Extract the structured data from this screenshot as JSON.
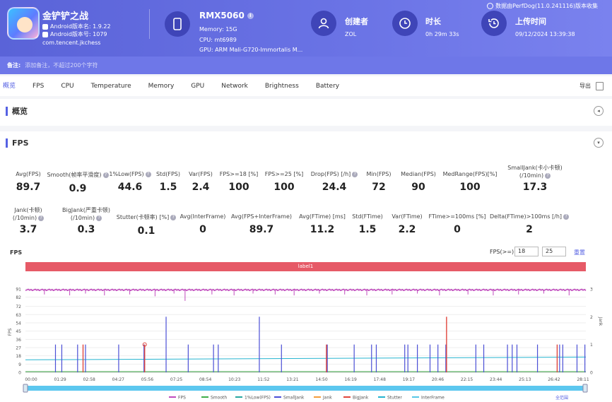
{
  "app": {
    "name": "金铲铲之战",
    "version_line": "Android版本名: 1.9.22",
    "code_line": "Android版本号: 1079",
    "package": "com.tencent.jkchess"
  },
  "device": {
    "name": "RMX5060",
    "memory": "Memory: 15G",
    "cpu": "CPU: mt6989",
    "gpu": "GPU: ARM Mali-G720-Immortalis M..."
  },
  "creator": {
    "title": "创建者",
    "value": "ZOL"
  },
  "duration": {
    "title": "时长",
    "value": "0h 29m 33s"
  },
  "upload": {
    "title": "上传时间",
    "value": "09/12/2024 13:39:38"
  },
  "perfdog_link": "数据由PerfDog(11.0.241116)版本收集",
  "note": {
    "label": "备注:",
    "placeholder": "添加备注，不超过200个字符"
  },
  "tabs": [
    "概览",
    "FPS",
    "CPU",
    "Temperature",
    "Memory",
    "GPU",
    "Network",
    "Brightness",
    "Battery"
  ],
  "export_label": "导出",
  "overview_title": "概览",
  "fps_title": "FPS",
  "stats_row1": [
    {
      "label": "Avg(FPS)",
      "value": "89.7",
      "q": false
    },
    {
      "label": "Smooth(帧率平滑度)",
      "value": "0.9",
      "q": true
    },
    {
      "label": "1%Low(FPS)",
      "value": "44.6",
      "q": true
    },
    {
      "label": "Std(FPS)",
      "value": "1.5",
      "q": false
    },
    {
      "label": "Var(FPS)",
      "value": "2.4",
      "q": false
    },
    {
      "label": "FPS>=18 [%]",
      "value": "100",
      "q": false
    },
    {
      "label": "FPS>=25 [%]",
      "value": "100",
      "q": false
    },
    {
      "label": "Drop(FPS) [/h]",
      "value": "24.4",
      "q": true
    },
    {
      "label": "Min(FPS)",
      "value": "72",
      "q": false
    },
    {
      "label": "Median(FPS)",
      "value": "90",
      "q": false
    },
    {
      "label": "MedRange(FPS)[%]",
      "value": "100",
      "q": false
    },
    {
      "label": "SmallJank(卡小卡顿)",
      "label2": "(/10min)",
      "value": "17.3",
      "q": true
    }
  ],
  "stats_row2": [
    {
      "label": "Jank(卡顿)",
      "label2": "(/10min)",
      "value": "3.7",
      "q": true
    },
    {
      "label": "BigJank(严重卡顿)",
      "label2": "(/10min)",
      "value": "0.3",
      "q": true
    },
    {
      "label": "Stutter(卡顿率) [%]",
      "value": "0.1",
      "q": true
    },
    {
      "label": "Avg(InterFrame)",
      "value": "0",
      "q": false
    },
    {
      "label": "Avg(FPS+InterFrame)",
      "value": "89.7",
      "q": false
    },
    {
      "label": "Avg(FTime) [ms]",
      "value": "11.2",
      "q": false
    },
    {
      "label": "Std(FTime)",
      "value": "1.5",
      "q": false
    },
    {
      "label": "Var(FTime)",
      "value": "2.2",
      "q": false
    },
    {
      "label": "FTime>=100ms [%]",
      "value": "0",
      "q": false
    },
    {
      "label": "Delta(FTime)>100ms [/h]",
      "value": "2",
      "q": true
    }
  ],
  "chart_controls": {
    "title": "FPS",
    "threshold_label": "FPS(>=)",
    "threshold_1": "18",
    "threshold_2": "25",
    "reset_label": "重置",
    "label_bar": "label1",
    "zoom_all": "全范围"
  },
  "chart_data": {
    "type": "line",
    "title": "FPS",
    "ylabel": "FPS",
    "y2label": "Jank",
    "ylim": [
      0,
      91
    ],
    "y2lim": [
      0,
      3
    ],
    "yticks": [
      0,
      9,
      18,
      27,
      36,
      45,
      54,
      63,
      72,
      82,
      91
    ],
    "y2ticks": [
      0,
      1,
      2,
      3
    ],
    "xticks": [
      "00:00",
      "01:29",
      "02:58",
      "04:27",
      "05:56",
      "07:25",
      "08:54",
      "10:23",
      "11:52",
      "13:21",
      "14:50",
      "16:19",
      "17:48",
      "19:17",
      "20:46",
      "22:15",
      "23:44",
      "25:13",
      "26:42",
      "28:11"
    ],
    "duration_s": 1773,
    "fps_base": 90,
    "fps_dips_s": [
      60,
      140,
      190,
      250,
      330,
      410,
      470,
      505,
      590,
      660,
      720,
      790,
      850,
      930,
      1010,
      1080,
      1160,
      1240,
      1310,
      1400,
      1480,
      1560,
      1640,
      1720
    ],
    "fps_dip_values": [
      85,
      84,
      86,
      84,
      85,
      83,
      86,
      78,
      85,
      84,
      86,
      85,
      84,
      86,
      85,
      84,
      85,
      86,
      84,
      85,
      84,
      85,
      86,
      84
    ],
    "smalljank_s": [
      95,
      115,
      165,
      190,
      295,
      375,
      445,
      515,
      595,
      610,
      740,
      810,
      955,
      1040,
      1095,
      1110,
      1200,
      1210,
      1240,
      1280,
      1305,
      1330,
      1425,
      1450,
      1525,
      1540,
      1555,
      1620,
      1690,
      1700,
      1745,
      1770
    ],
    "smalljank_vals": [
      1,
      1,
      1,
      1,
      1,
      1,
      2,
      1,
      1,
      1,
      2,
      1,
      1,
      1,
      1,
      1,
      1,
      1,
      1,
      1,
      1,
      1,
      1,
      1,
      1,
      1,
      1,
      1,
      1,
      1,
      1,
      1
    ],
    "jank_s": [],
    "bigjank_s": [
      180,
      375,
      950,
      1330,
      1680
    ],
    "bigjank_vals": [
      1,
      1,
      1,
      2,
      1
    ],
    "stutter": [
      [
        0,
        0.45
      ],
      [
        1773,
        0.55
      ]
    ],
    "interframe": [
      [
        0,
        0.0
      ],
      [
        1773,
        0.0
      ]
    ],
    "legend": [
      "FPS",
      "Smooth",
      "1%Low(FPS)",
      "SmallJank",
      "Jank",
      "BigJank",
      "Stutter",
      "InterFrame"
    ],
    "colors": {
      "fps": "#c04bbd",
      "smooth": "#3fae49",
      "low1": "#2aa7a0",
      "smalljank": "#4b4fd6",
      "jank": "#f39c3c",
      "bigjank": "#e0463c",
      "stutter": "#25b4d0",
      "interframe": "#56c7e6"
    }
  }
}
